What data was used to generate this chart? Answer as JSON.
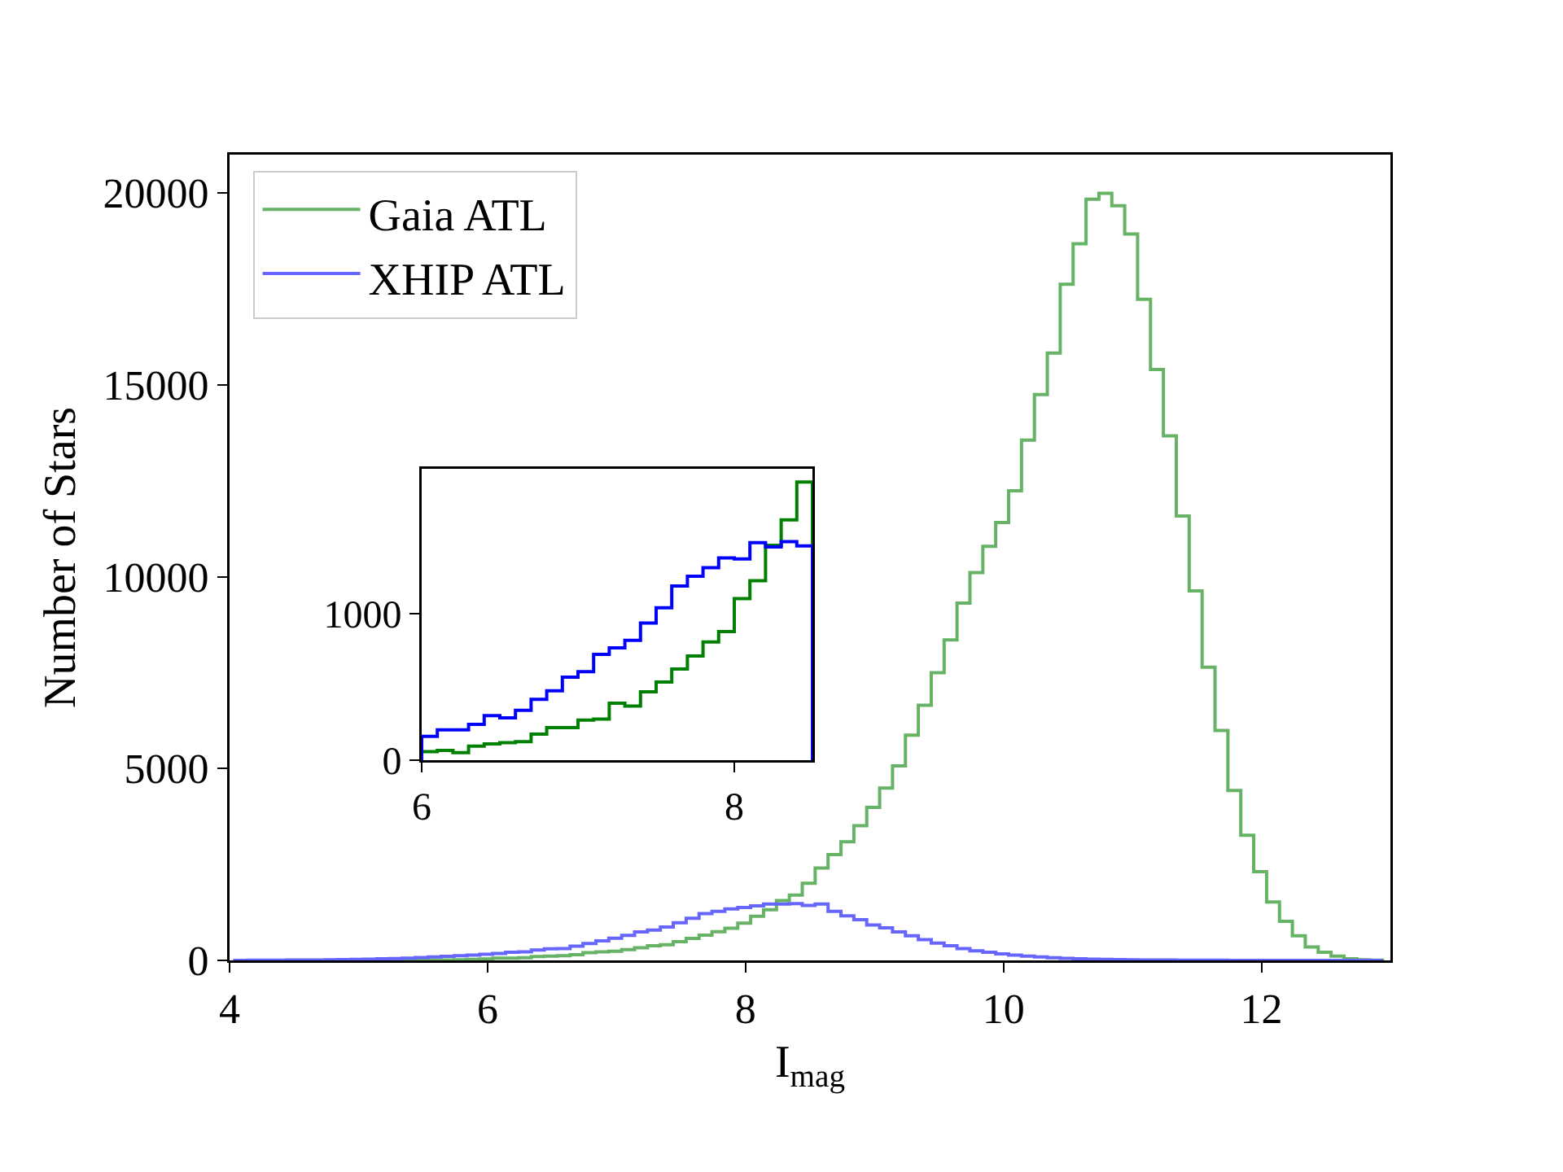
{
  "chart_data": [
    {
      "type": "histogram",
      "xlabel": "I$_{mag}$",
      "ylabel": "Number of Stars",
      "bins": [
        4.04,
        4.14,
        4.24,
        4.34,
        4.44,
        4.54,
        4.64,
        4.74,
        4.84,
        4.94,
        5.04,
        5.14,
        5.24,
        5.34,
        5.44,
        5.54,
        5.64,
        5.74,
        5.84,
        5.94,
        6.04,
        6.14,
        6.24,
        6.34,
        6.44,
        6.54,
        6.64,
        6.74,
        6.84,
        6.94,
        7.04,
        7.14,
        7.24,
        7.34,
        7.44,
        7.54,
        7.64,
        7.74,
        7.84,
        7.94,
        8.04,
        8.14,
        8.24,
        8.34,
        8.44,
        8.54,
        8.64,
        8.74,
        8.84,
        8.94,
        9.04,
        9.14,
        9.24,
        9.34,
        9.44,
        9.54,
        9.64,
        9.74,
        9.84,
        9.94,
        10.04,
        10.14,
        10.24,
        10.34,
        10.44,
        10.54,
        10.64,
        10.74,
        10.84,
        10.94,
        11.04,
        11.14,
        11.24,
        11.34,
        11.44,
        11.54,
        11.64,
        11.74,
        11.84,
        11.94,
        12.04,
        12.14,
        12.24,
        12.34,
        12.44,
        12.54,
        12.64,
        12.74,
        12.84,
        12.94
      ],
      "series": [
        {
          "name": "Gaia ATL",
          "color": "#66b366",
          "values": [
            0,
            0,
            0,
            0,
            0,
            0,
            0,
            0,
            0,
            0,
            0,
            0,
            2,
            3,
            5,
            8,
            12,
            18,
            25,
            35,
            60,
            60,
            70,
            100,
            110,
            120,
            150,
            200,
            220,
            240,
            280,
            330,
            380,
            410,
            490,
            570,
            660,
            750,
            840,
            970,
            1150,
            1320,
            1560,
            1700,
            2010,
            2410,
            2760,
            3090,
            3510,
            3990,
            4490,
            5070,
            5870,
            6650,
            7500,
            8350,
            9310,
            10110,
            10790,
            11410,
            12240,
            13560,
            14750,
            15830,
            17620,
            18680,
            19840,
            19990,
            19670,
            18930,
            17230,
            15400,
            13670,
            11580,
            9630,
            7640,
            5990,
            4430,
            3260,
            2310,
            1520,
            1020,
            640,
            350,
            210,
            110,
            40,
            15,
            5
          ]
        },
        {
          "name": "XHIP ATL",
          "color": "#6666ff",
          "values": [
            2,
            3,
            4,
            5,
            8,
            10,
            12,
            15,
            20,
            25,
            30,
            40,
            50,
            60,
            75,
            90,
            105,
            120,
            140,
            160,
            180,
            210,
            220,
            270,
            300,
            310,
            370,
            440,
            510,
            580,
            650,
            740,
            790,
            870,
            980,
            1100,
            1220,
            1280,
            1340,
            1380,
            1420,
            1470,
            1470,
            1480,
            1430,
            1470,
            1280,
            1160,
            1060,
            920,
            850,
            740,
            640,
            540,
            450,
            380,
            310,
            250,
            210,
            170,
            140,
            110,
            90,
            70,
            55,
            40,
            30,
            25,
            20,
            15,
            10,
            10,
            8,
            6,
            5,
            4,
            3,
            2,
            2,
            1,
            1,
            0,
            0,
            0,
            0,
            0,
            0,
            0,
            0
          ]
        }
      ],
      "xlim": [
        4,
        13
      ],
      "ylim": [
        0,
        21000
      ],
      "xticks": [
        4,
        6,
        8,
        10,
        12
      ],
      "yticks": [
        0,
        5000,
        10000,
        15000,
        20000
      ],
      "legend": "top left"
    },
    {
      "type": "histogram",
      "bins": [
        6.0,
        6.1,
        6.2,
        6.3,
        6.4,
        6.5,
        6.6,
        6.7,
        6.8,
        6.9,
        7.0,
        7.1,
        7.2,
        7.3,
        7.4,
        7.5,
        7.6,
        7.7,
        7.8,
        7.9,
        8.0,
        8.1,
        8.2,
        8.3,
        8.4,
        8.5
      ],
      "series": [
        {
          "color": "#008000",
          "values": [
            59,
            67,
            52,
            96,
            111,
            119,
            126,
            178,
            222,
            222,
            274,
            281,
            389,
            370,
            467,
            533,
            622,
            711,
            807,
            878,
            1104,
            1226,
            1467,
            1641,
            1900
          ]
        },
        {
          "color": "#0000ff",
          "values": [
            163,
            207,
            207,
            244,
            304,
            289,
            341,
            415,
            474,
            567,
            604,
            722,
            767,
            819,
            937,
            1041,
            1189,
            1256,
            1315,
            1381,
            1374,
            1485,
            1456,
            1493,
            1463
          ]
        }
      ],
      "xlim": [
        6,
        8.5
      ],
      "ylim": [
        0,
        1990
      ],
      "xticks": [
        6,
        8
      ],
      "yticks": [
        0,
        1000
      ]
    }
  ]
}
